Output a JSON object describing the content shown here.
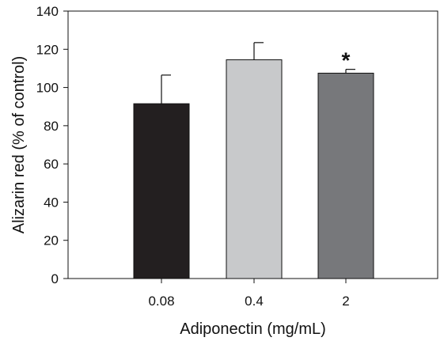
{
  "chart_data": {
    "type": "bar",
    "title": "",
    "xlabel": "Adiponectin (mg/mL)",
    "ylabel": "Alizarin red (% of control)",
    "categories": [
      "0.08",
      "0.4",
      "2"
    ],
    "values": [
      91.5,
      114.5,
      107.5
    ],
    "errors": [
      15,
      9,
      2
    ],
    "colors": [
      "#231f20",
      "#c8c9cb",
      "#77787b"
    ],
    "annotations": [
      {
        "category": "2",
        "text": "*"
      }
    ],
    "ylim": [
      0,
      140
    ],
    "yticks": [
      "0",
      "20",
      "40",
      "60",
      "80",
      "100",
      "120",
      "140"
    ],
    "grid": false,
    "legend": "none"
  }
}
